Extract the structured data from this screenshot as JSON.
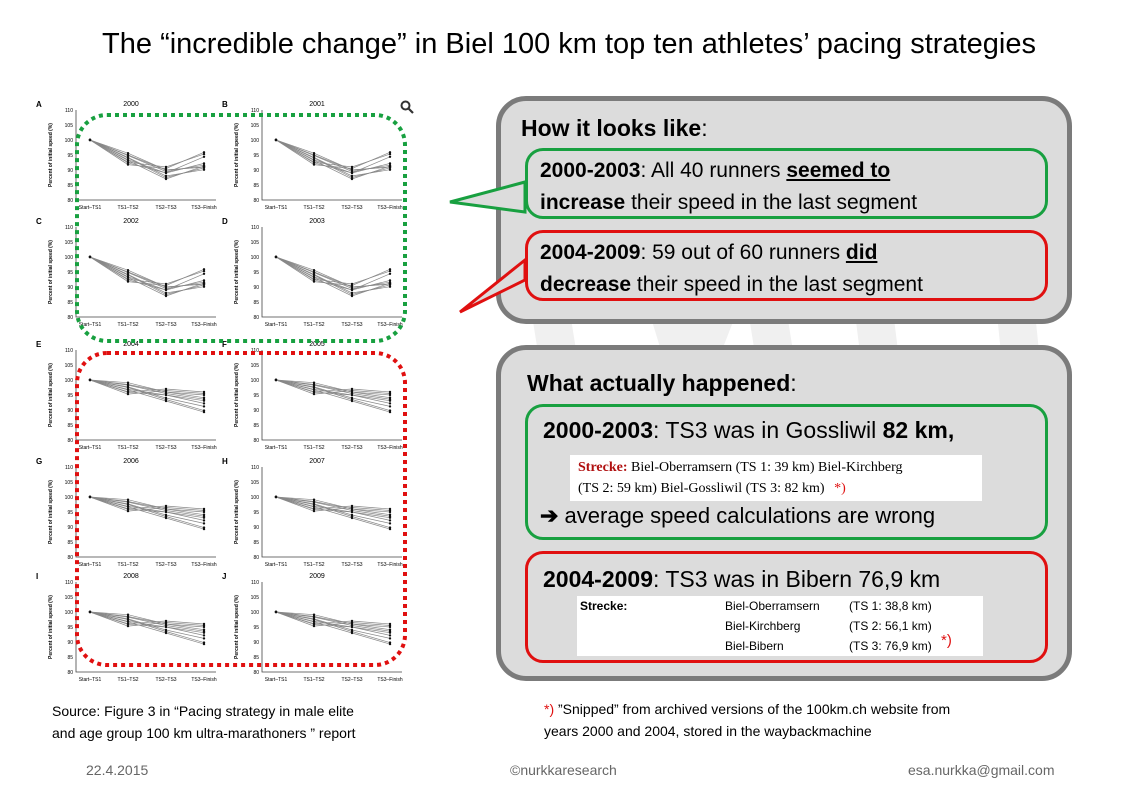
{
  "title": "The “incredible change” in Biel 100 km top ten athletes’ pacing strategies",
  "figure": {
    "panels": [
      {
        "letter": "A",
        "year": "2000"
      },
      {
        "letter": "B",
        "year": "2001"
      },
      {
        "letter": "C",
        "year": "2002"
      },
      {
        "letter": "D",
        "year": "2003"
      },
      {
        "letter": "E",
        "year": "2004"
      },
      {
        "letter": "F",
        "year": "2005"
      },
      {
        "letter": "G",
        "year": "2006"
      },
      {
        "letter": "H",
        "year": "2007"
      },
      {
        "letter": "I",
        "year": "2008"
      },
      {
        "letter": "J",
        "year": "2009"
      }
    ],
    "y_ticks": [
      "110",
      "105",
      "100",
      "95",
      "90",
      "85",
      "80"
    ],
    "x_ticks": [
      "Start–TS1",
      "TS1–TS2",
      "TS2–TS3",
      "TS3–Finish"
    ],
    "y_label": "Percent of initial speed (%)",
    "magnifier_icon": "search-icon",
    "colors": {
      "green": "#18a040",
      "red": "#e01010"
    }
  },
  "how": {
    "heading": "How it looks like",
    "heading_colon": ":",
    "green": {
      "years": "2000-2003",
      "t1": ": All 40 runners ",
      "emph1": "seemed to",
      "emph2": "increase",
      "t2": " their speed in the last segment"
    },
    "red": {
      "years": "2004-2009",
      "t1": ": 59 out of 60 runners ",
      "emph1": "did",
      "emph2": "decrease",
      "t2": " their speed in the last segment"
    }
  },
  "what": {
    "heading": "What actually happened",
    "heading_colon": ":",
    "green": {
      "years": "2000-2003",
      "t1": ": TS3 was in Gossliwil ",
      "emph": "82 km,",
      "snip_label": "Strecke:",
      "snip_l1": " Biel-Oberramsern (TS 1: 39 km) Biel-Kirchberg",
      "snip_l2": "(TS 2: 59 km) Biel-Gossliwil (TS 3: 82 km)",
      "snip_star": "*)",
      "arrow": "➔",
      "conclusion": " average speed calculations are wrong"
    },
    "red": {
      "years": "2004-2009",
      "t1": ": TS3 was in Bibern 76,9 km",
      "snip_label": "Strecke:",
      "rows": [
        {
          "place": "Biel-Oberramsern",
          "ts": "(TS 1: 38,8 km)"
        },
        {
          "place": "Biel-Kirchberg",
          "ts": "(TS 2: 56,1 km)"
        },
        {
          "place": "Biel-Bibern",
          "ts": "(TS 3: 76,9 km)"
        }
      ],
      "snip_star": "*)"
    }
  },
  "source": {
    "line1": "Source: Figure 3 in “Pacing strategy in male elite",
    "line2": "and age group 100 km ultra-marathoners ” report"
  },
  "note": {
    "star": "*)",
    "line1": " ”Snipped” from archived versions of the 100km.ch website from",
    "line2": "years 2000 and 2004, stored in the waybackmachine"
  },
  "footer": {
    "date": "22.4.2015",
    "center": "©nurkkaresearch",
    "email": "esa.nurkka@gmail.com"
  }
}
